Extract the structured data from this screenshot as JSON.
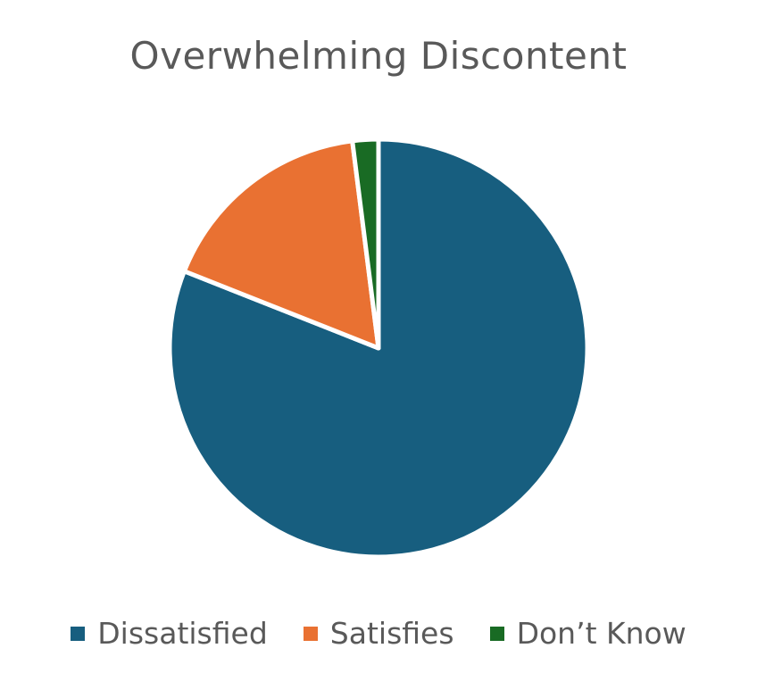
{
  "chart_data": {
    "type": "pie",
    "title": "Overwhelming Discontent",
    "categories": [
      "Dissatisfied",
      "Satisfies",
      "Don’t Know"
    ],
    "values": [
      81,
      17,
      2
    ],
    "colors": [
      "#175e7f",
      "#e97132",
      "#196b24"
    ],
    "start_angle_deg": 0,
    "direction": "clockwise",
    "legend_position": "bottom"
  }
}
